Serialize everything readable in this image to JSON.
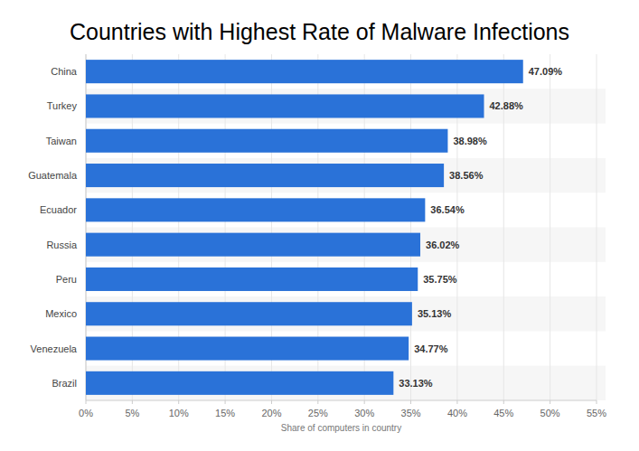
{
  "chart_data": {
    "type": "bar",
    "title": "Countries with Highest Rate of Malware Infections",
    "categories": [
      "China",
      "Turkey",
      "Taiwan",
      "Guatemala",
      "Ecuador",
      "Russia",
      "Peru",
      "Mexico",
      "Venezuela",
      "Brazil"
    ],
    "values": [
      47.09,
      42.88,
      38.98,
      38.56,
      36.54,
      36.02,
      35.75,
      35.13,
      34.77,
      33.13
    ],
    "value_labels": [
      "47.09%",
      "42.88%",
      "38.98%",
      "38.56%",
      "36.54%",
      "36.02%",
      "35.75%",
      "35.13%",
      "34.77%",
      "33.13%"
    ],
    "color": "#2a72d8",
    "orientation": "horizontal",
    "data_labels": true,
    "grid": true,
    "xlabel": "Share of computers in country",
    "xlim": [
      0,
      55
    ],
    "xticks": [
      {
        "value": 0,
        "label": "0%"
      },
      {
        "value": 5,
        "label": "5%"
      },
      {
        "value": 10,
        "label": "10%"
      },
      {
        "value": 15,
        "label": "15%"
      },
      {
        "value": 20,
        "label": "20%"
      },
      {
        "value": 25,
        "label": "25%"
      },
      {
        "value": 30,
        "label": "30%"
      },
      {
        "value": 35,
        "label": "35%"
      },
      {
        "value": 40,
        "label": "40%"
      },
      {
        "value": 45,
        "label": "45%"
      },
      {
        "value": 50,
        "label": "50%"
      },
      {
        "value": 55,
        "label": "55%"
      }
    ]
  }
}
